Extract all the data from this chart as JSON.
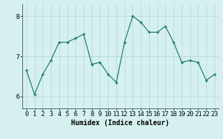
{
  "x": [
    0,
    1,
    2,
    3,
    4,
    5,
    6,
    7,
    8,
    9,
    10,
    11,
    12,
    13,
    14,
    15,
    16,
    17,
    18,
    19,
    20,
    21,
    22,
    23
  ],
  "y": [
    6.65,
    6.05,
    6.55,
    6.9,
    7.35,
    7.35,
    7.45,
    7.55,
    6.8,
    6.85,
    6.55,
    6.35,
    7.35,
    8.0,
    7.85,
    7.6,
    7.6,
    7.75,
    7.35,
    6.85,
    6.9,
    6.85,
    6.4,
    6.55
  ],
  "line_color": "#1a7a6e",
  "bg_color": "#d6f0f0",
  "grid_color": "#b8d8d8",
  "xlabel": "Humidex (Indice chaleur)",
  "yticks": [
    6,
    7,
    8
  ],
  "ylim": [
    5.7,
    8.3
  ],
  "xlim": [
    -0.5,
    23.5
  ],
  "label_fontsize": 7,
  "tick_fontsize": 6.5
}
